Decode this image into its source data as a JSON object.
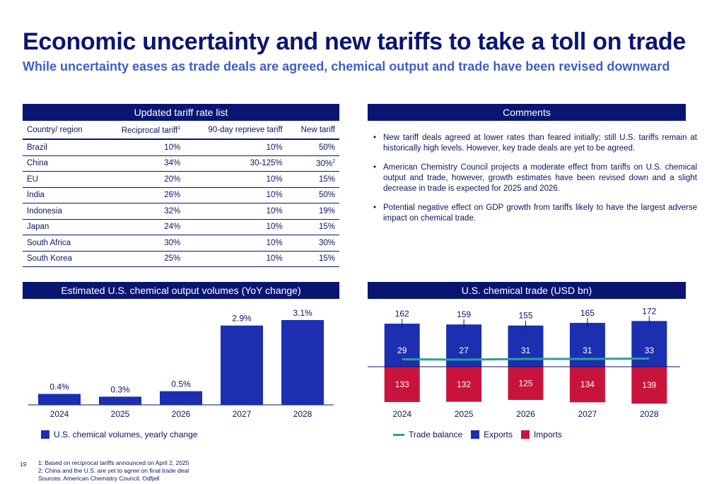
{
  "header": {
    "title": "Economic uncertainty and new tariffs to take a toll on trade",
    "subtitle": "While uncertainty eases as trade deals are agreed, chemical output and trade have been revised downward"
  },
  "tariff_table": {
    "heading": "Updated tariff rate list",
    "columns": [
      "Country/ region",
      "Reciprocal tariff",
      "90-day reprieve tariff",
      "New tariff"
    ],
    "reciprocal_sup": "1",
    "rows": [
      {
        "country": "Brazil",
        "reciprocal": "10%",
        "reprieve": "10%",
        "new": "50%",
        "sup": ""
      },
      {
        "country": "China",
        "reciprocal": "34%",
        "reprieve": "30-125%",
        "new": "30%",
        "sup": "2"
      },
      {
        "country": "EU",
        "reciprocal": "20%",
        "reprieve": "10%",
        "new": "15%",
        "sup": ""
      },
      {
        "country": "India",
        "reciprocal": "26%",
        "reprieve": "10%",
        "new": "50%",
        "sup": ""
      },
      {
        "country": "Indonesia",
        "reciprocal": "32%",
        "reprieve": "10%",
        "new": "19%",
        "sup": ""
      },
      {
        "country": "Japan",
        "reciprocal": "24%",
        "reprieve": "10%",
        "new": "15%",
        "sup": ""
      },
      {
        "country": "South Africa",
        "reciprocal": "30%",
        "reprieve": "10%",
        "new": "30%",
        "sup": ""
      },
      {
        "country": "South Korea",
        "reciprocal": "25%",
        "reprieve": "10%",
        "new": "15%",
        "sup": ""
      }
    ]
  },
  "comments": {
    "heading": "Comments",
    "bullets": [
      "New tariff deals agreed at lower rates than feared initially; still U.S. tariffs remain at historically high levels. However, key trade deals are yet to be agreed.",
      "American Chemistry Council projects a moderate effect from tariffs on U.S. chemical output and trade, however, growth estimates have been revised down and a slight decrease in trade is expected for 2025 and 2026.",
      "Potential negative effect on GDP growth from tariffs likely to have the largest adverse impact on chemical trade."
    ]
  },
  "chart_data": [
    {
      "type": "bar",
      "title": "Estimated U.S. chemical output volumes (YoY change)",
      "categories": [
        "2024",
        "2025",
        "2026",
        "2027",
        "2028"
      ],
      "series": [
        {
          "name": "U.S. chemical volumes, yearly change",
          "values": [
            0.4,
            0.3,
            0.5,
            2.9,
            3.1
          ]
        }
      ],
      "data_labels": [
        "0.4%",
        "0.3%",
        "0.5%",
        "2.9%",
        "3.1%"
      ],
      "ylim": [
        0,
        3.1
      ],
      "color": "#1c2fb0",
      "legend": "bottom-left",
      "grid": false
    },
    {
      "type": "bar",
      "title": "U.S. chemical trade (USD bn)",
      "categories": [
        "2024",
        "2025",
        "2026",
        "2027",
        "2028"
      ],
      "series": [
        {
          "name": "Trade balance",
          "type": "line",
          "values": [
            29,
            27,
            31,
            31,
            33
          ],
          "color": "#2aa198"
        },
        {
          "name": "Exports",
          "values": [
            162,
            159,
            155,
            165,
            172
          ],
          "color": "#1c2fb0"
        },
        {
          "name": "Imports",
          "values": [
            133,
            132,
            125,
            134,
            139
          ],
          "color": "#c8143c"
        }
      ],
      "legend": "bottom",
      "grid": false
    }
  ],
  "footer": {
    "page_number": "19",
    "notes": [
      "1: Based on reciprocal tariffs announced on April 2, 2025",
      "2: China and the U.S. are yet to agree on final trade deal",
      "Sources: American Chemistry Council, Odfjell"
    ]
  }
}
